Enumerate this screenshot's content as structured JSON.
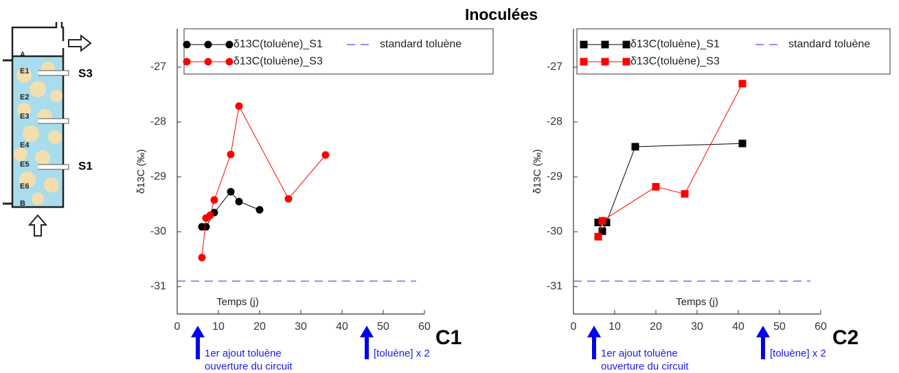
{
  "title": "Inoculées",
  "diagram": {
    "labels": [
      "A",
      "E1",
      "E2",
      "E3",
      "E4",
      "E5",
      "E6",
      "B"
    ],
    "outlets": [
      "S3",
      "S1"
    ]
  },
  "chart_data": [
    {
      "type": "line",
      "panel_label": "C1",
      "x_label": "Temps (j)",
      "y_label": "δ13C (‰)",
      "xlim": [
        0,
        60
      ],
      "ylim": [
        -31.5,
        -26.3
      ],
      "xticks": [
        0,
        10,
        20,
        30,
        40,
        50,
        60
      ],
      "yticks": [
        -31,
        -30,
        -29,
        -28,
        -27
      ],
      "series": [
        {
          "name": "δ13C(toluène)_S1",
          "color": "#000000",
          "marker": "circle",
          "x": [
            6,
            7,
            9,
            13,
            15,
            20
          ],
          "values": [
            -29.91,
            -29.91,
            -29.65,
            -29.27,
            -29.45,
            -29.6
          ]
        },
        {
          "name": "δ13C(toluène)_S3",
          "color": "#ff0000",
          "marker": "circle",
          "x": [
            6,
            7,
            8,
            9,
            13,
            15,
            27,
            36
          ],
          "values": [
            -30.47,
            -29.75,
            -29.7,
            -29.42,
            -28.59,
            -27.71,
            -29.4,
            -28.6
          ]
        },
        {
          "name": "standard toluène",
          "color": "#6b6bff",
          "dashed": true,
          "x": [
            0,
            58
          ],
          "values": [
            -30.9,
            -30.9
          ]
        }
      ],
      "arrows": [
        {
          "x": 5,
          "label": [
            "1er ajout toluène",
            "ouverture du circuit"
          ]
        },
        {
          "x": 46,
          "label": [
            "[toluène] x 2"
          ]
        }
      ]
    },
    {
      "type": "line",
      "panel_label": "C2",
      "x_label": "Temps (j)",
      "y_label": "δ13C (‰)",
      "xlim": [
        0,
        60
      ],
      "ylim": [
        -31.5,
        -26.3
      ],
      "xticks": [
        0,
        10,
        20,
        30,
        40,
        50,
        60
      ],
      "yticks": [
        -31,
        -30,
        -29,
        -28,
        -27
      ],
      "series": [
        {
          "name": "δ13C(toluène)_S1",
          "color": "#000000",
          "marker": "square",
          "x": [
            6,
            7,
            8,
            15,
            41
          ],
          "values": [
            -29.83,
            -29.99,
            -29.83,
            -28.45,
            -28.39
          ]
        },
        {
          "name": "δ13C(toluène)_S3",
          "color": "#ff0000",
          "marker": "square",
          "x": [
            6,
            7,
            20,
            27,
            41
          ],
          "values": [
            -30.09,
            -29.8,
            -29.18,
            -29.31,
            -27.3
          ]
        },
        {
          "name": "standard toluène",
          "color": "#6b6bff",
          "dashed": true,
          "x": [
            0,
            57.5
          ],
          "values": [
            -30.9,
            -30.9
          ]
        }
      ],
      "arrows": [
        {
          "x": 5,
          "label": [
            "1er ajout toluène",
            "ouverture du circuit"
          ]
        },
        {
          "x": 46,
          "label": [
            "[toluène] x 2"
          ]
        }
      ]
    }
  ]
}
